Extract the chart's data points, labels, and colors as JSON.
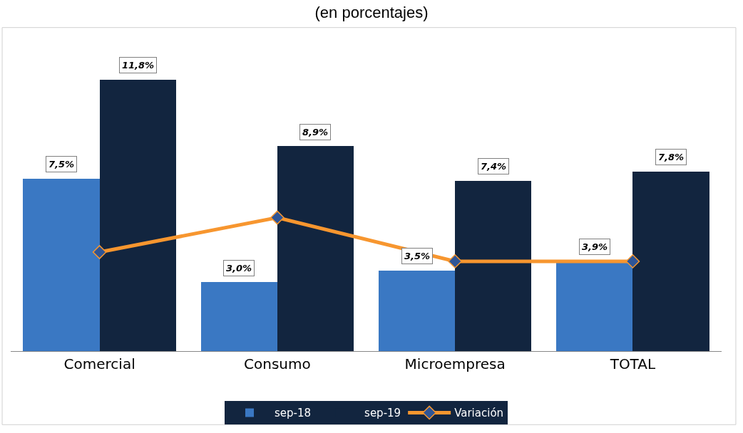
{
  "chart_data": {
    "type": "bar",
    "title": "(en porcentajes)",
    "categories": [
      "Comercial",
      "Consumo",
      "Microempresa",
      "TOTAL"
    ],
    "series": [
      {
        "name": "sep-18",
        "color": "#3a78c3",
        "values": [
          7.5,
          3.0,
          3.5,
          3.9
        ],
        "value_labels": [
          "7,5%",
          "3,0%",
          "3,5%",
          "3,9%"
        ]
      },
      {
        "name": "sep-19",
        "color": "#12253f",
        "values": [
          11.8,
          8.9,
          7.4,
          7.8
        ],
        "value_labels": [
          "11,8%",
          "8,9%",
          "7,4%",
          "7,8%"
        ]
      },
      {
        "name": "Variación",
        "type": "line",
        "color": "#f7962f",
        "values": [
          4.3,
          5.8,
          3.9,
          3.9
        ],
        "marker": "diamond"
      }
    ],
    "tick_labels": "x",
    "legend": "bottom"
  }
}
